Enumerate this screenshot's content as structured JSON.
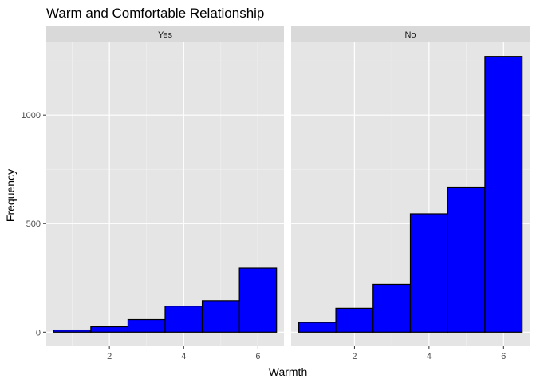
{
  "chart_data": {
    "type": "bar",
    "title": "Warm and Comfortable Relationship",
    "xlabel": "Warmth",
    "ylabel": "Frequency",
    "x": [
      1,
      2,
      3,
      4,
      5,
      6
    ],
    "x_ticks": [
      2,
      4,
      6
    ],
    "xlim": [
      0.3,
      6.7
    ],
    "y_ticks": [
      0,
      500,
      1000
    ],
    "ylim": [
      -65,
      1335
    ],
    "facets": [
      {
        "label": "Yes",
        "values": [
          10,
          25,
          58,
          120,
          145,
          295
        ]
      },
      {
        "label": "No",
        "values": [
          45,
          110,
          220,
          545,
          668,
          1270
        ]
      }
    ],
    "bar_fill": "#0000ff",
    "bar_outline": "#000000",
    "panel_background": "#e5e5e5",
    "strip_background": "#d9d9d9",
    "grid": true,
    "legend": "none"
  }
}
